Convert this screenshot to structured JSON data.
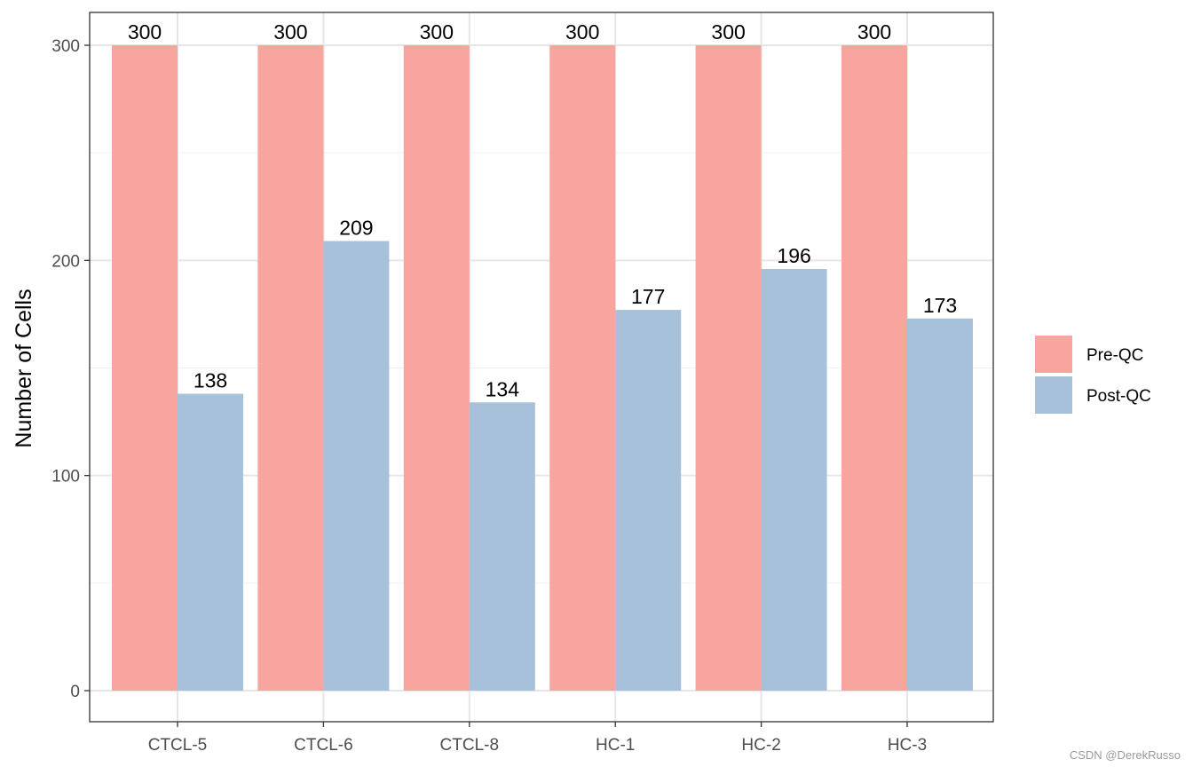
{
  "chart_data": {
    "type": "bar",
    "categories": [
      "CTCL-5",
      "CTCL-6",
      "CTCL-8",
      "HC-1",
      "HC-2",
      "HC-3"
    ],
    "series": [
      {
        "name": "Pre-QC",
        "values": [
          300,
          300,
          300,
          300,
          300,
          300
        ],
        "color": "#F7A59E"
      },
      {
        "name": "Post-QC",
        "values": [
          138,
          209,
          134,
          177,
          196,
          173
        ],
        "color": "#A7C1DB"
      }
    ],
    "xlabel": "",
    "ylabel": "Number of Cells",
    "ylim": [
      0,
      300
    ],
    "yticks": [
      0,
      100,
      200,
      300
    ],
    "grid": true,
    "legend_position": "right"
  },
  "watermark": "CSDN @DerekRusso"
}
